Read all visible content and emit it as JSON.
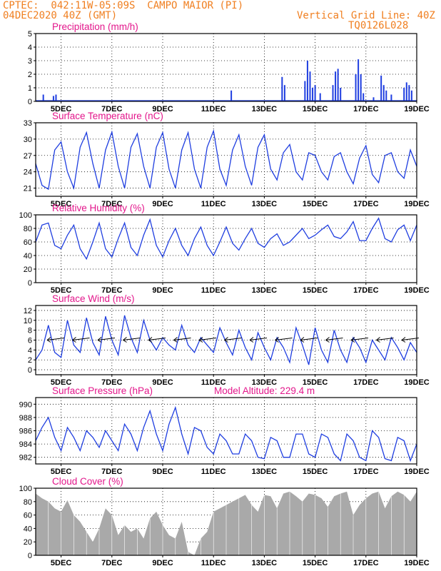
{
  "header": {
    "line1": "CPTEC:  042:11W-05:09S  CAMPO MAIOR (PI)",
    "line2": "04DEC2020 40Z (GMT)",
    "grid_note": "Vertical Grid Line: 40Z",
    "code": "TQ0126L028"
  },
  "x_ticks": [
    "5DEC",
    "7DEC",
    "9DEC",
    "11DEC",
    "13DEC",
    "15DEC",
    "17DEC",
    "19DEC"
  ],
  "colors": {
    "header": "#f07f20",
    "title": "#e3168b",
    "series": "#1f3ee0",
    "bars": "#a9a9a9",
    "text": "#000000"
  },
  "chart_data": [
    {
      "type": "bar",
      "title": "Precipitation (mm/h)",
      "xlabel": "",
      "ylabel": "",
      "ylim": [
        0,
        5
      ],
      "y_ticks": [
        "0",
        "1",
        "2",
        "3",
        "4",
        "5"
      ],
      "x_range_days": [
        4.0,
        19.0
      ],
      "x": [
        4.3,
        4.7,
        4.8,
        11.7,
        13.7,
        13.8,
        14.6,
        14.7,
        14.8,
        14.9,
        15.0,
        15.2,
        15.7,
        15.8,
        15.9,
        16.0,
        16.6,
        16.7,
        16.8,
        16.9,
        17.3,
        17.6,
        17.7,
        17.8,
        18.0,
        18.5,
        18.6,
        18.7,
        18.8
      ],
      "values": [
        0.5,
        0.4,
        0.5,
        0.8,
        1.8,
        1.2,
        1.5,
        3.0,
        2.2,
        1.0,
        1.2,
        0.6,
        1.2,
        2.2,
        2.4,
        1.0,
        2.0,
        3.1,
        2.0,
        0.6,
        0.3,
        1.9,
        1.2,
        0.8,
        0.5,
        1.0,
        1.4,
        1.2,
        0.8
      ]
    },
    {
      "type": "line",
      "title": "Surface Temperature (nC)",
      "xlabel": "",
      "ylabel": "",
      "ylim": [
        19.5,
        33
      ],
      "y_ticks": [
        "21",
        "24",
        "27",
        "30",
        "33"
      ],
      "x_range_days": [
        4.0,
        19.0
      ],
      "series": [
        {
          "x": [
            4.0,
            4.25,
            4.5,
            4.75,
            5.0,
            5.25,
            5.5,
            5.75,
            6.0,
            6.25,
            6.5,
            6.75,
            7.0,
            7.25,
            7.5,
            7.75,
            8.0,
            8.25,
            8.5,
            8.75,
            9.0,
            9.25,
            9.5,
            9.75,
            10.0,
            10.25,
            10.5,
            10.75,
            11.0,
            11.25,
            11.5,
            11.75,
            12.0,
            12.25,
            12.5,
            12.75,
            13.0,
            13.25,
            13.5,
            13.75,
            14.0,
            14.25,
            14.5,
            14.75,
            15.0,
            15.25,
            15.5,
            15.75,
            16.0,
            16.25,
            16.5,
            16.75,
            17.0,
            17.25,
            17.5,
            17.75,
            18.0,
            18.25,
            18.5,
            18.75,
            19.0
          ],
          "values": [
            25.5,
            21.5,
            20.8,
            28.0,
            29.5,
            24.0,
            21.0,
            28.5,
            31.2,
            25.5,
            21.0,
            28.0,
            31.3,
            25.0,
            21.0,
            28.5,
            31.0,
            25.0,
            21.0,
            28.5,
            31.2,
            24.5,
            21.0,
            28.0,
            31.2,
            24.5,
            21.0,
            28.5,
            31.5,
            24.5,
            21.5,
            28.0,
            30.8,
            25.0,
            21.5,
            28.5,
            30.8,
            24.5,
            22.5,
            27.5,
            29.0,
            24.0,
            22.5,
            27.5,
            27.0,
            24.0,
            22.5,
            26.8,
            27.5,
            24.0,
            21.8,
            26.5,
            28.8,
            23.5,
            22.0,
            27.0,
            27.5,
            24.0,
            22.8,
            28.0,
            25.0
          ]
        }
      ]
    },
    {
      "type": "line",
      "title": "Relative Humidity (%)",
      "xlabel": "",
      "ylabel": "",
      "ylim": [
        0,
        100
      ],
      "y_ticks": [
        "0",
        "20",
        "40",
        "60",
        "80",
        "100"
      ],
      "x_range_days": [
        4.0,
        19.0
      ],
      "series": [
        {
          "x": [
            4.0,
            4.25,
            4.5,
            4.75,
            5.0,
            5.25,
            5.5,
            5.75,
            6.0,
            6.25,
            6.5,
            6.75,
            7.0,
            7.25,
            7.5,
            7.75,
            8.0,
            8.25,
            8.5,
            8.75,
            9.0,
            9.25,
            9.5,
            9.75,
            10.0,
            10.25,
            10.5,
            10.75,
            11.0,
            11.25,
            11.5,
            11.75,
            12.0,
            12.25,
            12.5,
            12.75,
            13.0,
            13.25,
            13.5,
            13.75,
            14.0,
            14.25,
            14.5,
            14.75,
            15.0,
            15.25,
            15.5,
            15.75,
            16.0,
            16.25,
            16.5,
            16.75,
            17.0,
            17.25,
            17.5,
            17.75,
            18.0,
            18.25,
            18.5,
            18.75,
            19.0
          ],
          "values": [
            60,
            85,
            88,
            55,
            50,
            70,
            85,
            50,
            35,
            60,
            88,
            50,
            38,
            65,
            88,
            52,
            40,
            70,
            93,
            55,
            38,
            62,
            80,
            55,
            40,
            65,
            82,
            55,
            40,
            60,
            82,
            58,
            48,
            65,
            80,
            58,
            52,
            65,
            72,
            55,
            60,
            70,
            80,
            65,
            70,
            78,
            85,
            68,
            65,
            75,
            90,
            62,
            62,
            80,
            95,
            65,
            60,
            78,
            85,
            62,
            85
          ]
        }
      ]
    },
    {
      "type": "line",
      "title": "Surface Wind (m/s)",
      "xlabel": "",
      "ylabel": "",
      "ylim": [
        -1,
        13
      ],
      "y_ticks": [
        "0",
        "2",
        "4",
        "6",
        "8",
        "10",
        "12"
      ],
      "x_range_days": [
        4.0,
        19.0
      ],
      "series": [
        {
          "x": [
            4.0,
            4.25,
            4.5,
            4.75,
            5.0,
            5.25,
            5.5,
            5.75,
            6.0,
            6.25,
            6.5,
            6.75,
            7.0,
            7.25,
            7.5,
            7.75,
            8.0,
            8.25,
            8.5,
            8.75,
            9.0,
            9.25,
            9.5,
            9.75,
            10.0,
            10.25,
            10.5,
            10.75,
            11.0,
            11.25,
            11.5,
            11.75,
            12.0,
            12.25,
            12.5,
            12.75,
            13.0,
            13.25,
            13.5,
            13.75,
            14.0,
            14.25,
            14.5,
            14.75,
            15.0,
            15.25,
            15.5,
            15.75,
            16.0,
            16.25,
            16.5,
            16.75,
            17.0,
            17.25,
            17.5,
            17.75,
            18.0,
            18.25,
            18.5,
            18.75,
            19.0
          ],
          "values": [
            2.0,
            4.0,
            9.0,
            3.5,
            2.5,
            10.0,
            5.0,
            3.5,
            10.5,
            5.5,
            3.0,
            10.8,
            6.0,
            3.0,
            11.0,
            6.5,
            3.5,
            10.0,
            6.0,
            4.0,
            6.5,
            5.0,
            4.0,
            9.0,
            5.0,
            3.5,
            6.5,
            5.0,
            3.5,
            8.5,
            5.5,
            3.0,
            8.0,
            4.5,
            2.0,
            7.5,
            4.5,
            2.0,
            6.5,
            4.5,
            1.5,
            8.5,
            5.0,
            1.0,
            8.5,
            4.0,
            1.5,
            8.0,
            4.0,
            1.5,
            6.5,
            4.5,
            1.5,
            6.0,
            4.0,
            2.0,
            6.5,
            4.5,
            2.0,
            5.5,
            3.5
          ]
        }
      ]
    },
    {
      "type": "line",
      "title": "Surface Pressure (hPa)",
      "annotation": "Model Altitude: 229.4 m",
      "xlabel": "",
      "ylabel": "",
      "ylim": [
        981,
        991
      ],
      "y_ticks": [
        "982",
        "984",
        "986",
        "988",
        "990"
      ],
      "x_range_days": [
        4.0,
        19.0
      ],
      "series": [
        {
          "x": [
            4.0,
            4.25,
            4.5,
            4.75,
            5.0,
            5.25,
            5.5,
            5.75,
            6.0,
            6.25,
            6.5,
            6.75,
            7.0,
            7.25,
            7.5,
            7.75,
            8.0,
            8.25,
            8.5,
            8.75,
            9.0,
            9.25,
            9.5,
            9.75,
            10.0,
            10.25,
            10.5,
            10.75,
            11.0,
            11.25,
            11.5,
            11.75,
            12.0,
            12.25,
            12.5,
            12.75,
            13.0,
            13.25,
            13.5,
            13.75,
            14.0,
            14.25,
            14.5,
            14.75,
            15.0,
            15.25,
            15.5,
            15.75,
            16.0,
            16.25,
            16.5,
            16.75,
            17.0,
            17.25,
            17.5,
            17.75,
            18.0,
            18.25,
            18.5,
            18.75,
            19.0
          ],
          "values": [
            984.5,
            986.5,
            988.0,
            985.0,
            983.0,
            986.5,
            985.0,
            983.0,
            986.0,
            985.0,
            983.5,
            986.0,
            984.5,
            983.0,
            987.0,
            985.5,
            983.0,
            986.5,
            989.0,
            985.5,
            983.0,
            987.0,
            989.5,
            985.5,
            982.5,
            986.5,
            986.0,
            983.5,
            982.5,
            985.5,
            984.5,
            982.5,
            982.5,
            985.5,
            984.5,
            982.0,
            981.8,
            985.0,
            984.5,
            982.0,
            982.0,
            985.5,
            985.5,
            982.5,
            982.0,
            985.5,
            985.0,
            982.5,
            981.5,
            985.5,
            984.5,
            982.0,
            981.5,
            986.0,
            985.0,
            981.8,
            981.5,
            985.0,
            984.5,
            981.5,
            984.0
          ]
        }
      ]
    },
    {
      "type": "area",
      "title": "Cloud Cover (%)",
      "xlabel": "",
      "ylabel": "",
      "ylim": [
        0,
        100
      ],
      "y_ticks": [
        "0",
        "20",
        "40",
        "60",
        "80",
        "100"
      ],
      "x_range_days": [
        4.0,
        19.0
      ],
      "series": [
        {
          "x": [
            4.0,
            4.25,
            4.5,
            4.75,
            5.0,
            5.25,
            5.5,
            5.75,
            6.0,
            6.25,
            6.5,
            6.75,
            7.0,
            7.25,
            7.5,
            7.75,
            8.0,
            8.25,
            8.5,
            8.75,
            9.0,
            9.25,
            9.5,
            9.75,
            10.0,
            10.25,
            10.5,
            10.75,
            11.0,
            11.25,
            11.5,
            11.75,
            12.0,
            12.25,
            12.5,
            12.75,
            13.0,
            13.25,
            13.5,
            13.75,
            14.0,
            14.25,
            14.5,
            14.75,
            15.0,
            15.25,
            15.5,
            15.75,
            16.0,
            16.25,
            16.5,
            16.75,
            17.0,
            17.25,
            17.5,
            17.75,
            18.0,
            18.25,
            18.5,
            18.75,
            19.0
          ],
          "values": [
            92,
            85,
            80,
            70,
            65,
            82,
            60,
            50,
            35,
            20,
            40,
            70,
            60,
            30,
            45,
            35,
            40,
            25,
            55,
            65,
            45,
            30,
            25,
            50,
            5,
            0,
            25,
            35,
            65,
            70,
            75,
            80,
            85,
            90,
            75,
            65,
            90,
            88,
            70,
            92,
            95,
            88,
            80,
            92,
            90,
            85,
            72,
            88,
            92,
            95,
            60,
            75,
            85,
            92,
            95,
            70,
            88,
            95,
            90,
            80,
            95
          ]
        }
      ]
    }
  ]
}
